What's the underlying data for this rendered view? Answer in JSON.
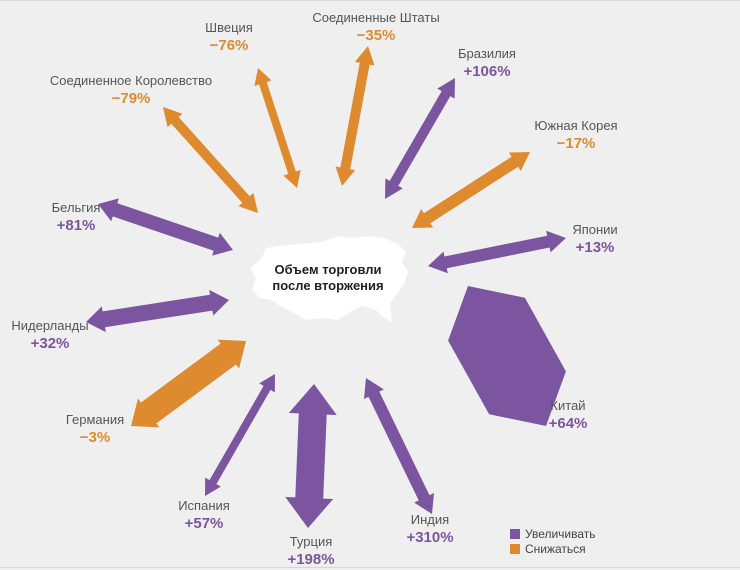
{
  "chart_data": {
    "type": "arrow-map",
    "title": "Объем торговли после вторжения",
    "colors": {
      "increase": "#7b559f",
      "decrease": "#de8b2f"
    },
    "legend": [
      {
        "key": "increase",
        "label": "Увеличивать"
      },
      {
        "key": "decrease",
        "label": "Снижаться"
      }
    ],
    "countries": [
      {
        "name": "Швеция",
        "value": "−76%",
        "change_pct": -76,
        "trend": "decrease"
      },
      {
        "name": "Соединенные Штаты",
        "value": "−35%",
        "change_pct": -35,
        "trend": "decrease"
      },
      {
        "name": "Бразилия",
        "value": "+106%",
        "change_pct": 106,
        "trend": "increase"
      },
      {
        "name": "Южная Корея",
        "value": "−17%",
        "change_pct": -17,
        "trend": "decrease"
      },
      {
        "name": "Японии",
        "value": "+13%",
        "change_pct": 13,
        "trend": "increase"
      },
      {
        "name": "Китай",
        "value": "+64%",
        "change_pct": 64,
        "trend": "increase"
      },
      {
        "name": "Индия",
        "value": "+310%",
        "change_pct": 310,
        "trend": "increase"
      },
      {
        "name": "Турция",
        "value": "+198%",
        "change_pct": 198,
        "trend": "increase"
      },
      {
        "name": "Испания",
        "value": "+57%",
        "change_pct": 57,
        "trend": "increase"
      },
      {
        "name": "Германия",
        "value": "−3%",
        "change_pct": -3,
        "trend": "decrease"
      },
      {
        "name": "Нидерланды",
        "value": "+32%",
        "change_pct": 32,
        "trend": "increase"
      },
      {
        "name": "Бельгия",
        "value": "+81%",
        "change_pct": 81,
        "trend": "increase"
      },
      {
        "name": "Соединенное Королевство",
        "value": "−79%",
        "change_pct": -79,
        "trend": "decrease"
      }
    ]
  }
}
